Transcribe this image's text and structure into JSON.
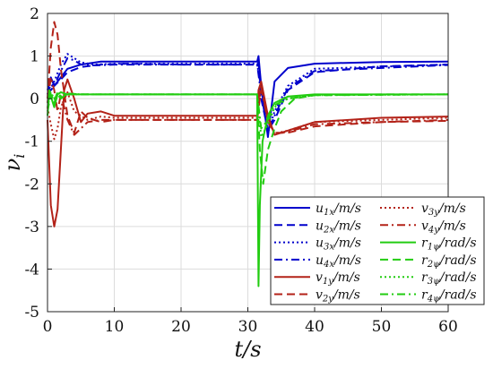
{
  "chart_data": {
    "type": "line",
    "title": "",
    "xlabel": "t/s",
    "ylabel": "ν_i",
    "xlim": [
      0,
      60
    ],
    "ylim": [
      -5,
      2
    ],
    "xticks": [
      0,
      10,
      20,
      30,
      40,
      50,
      60
    ],
    "yticks": [
      -5,
      -4,
      -3,
      -2,
      -1,
      0,
      1,
      2
    ],
    "grid": true,
    "legend_position": "bottom-right",
    "series": [
      {
        "name": "u_{1x}/m/s",
        "color": "#0000cc",
        "dash": "solid",
        "x": [
          0,
          0.5,
          1,
          2,
          3,
          5,
          8,
          12,
          20,
          31.4,
          31.6,
          32,
          33,
          34,
          36,
          40,
          50,
          60
        ],
        "y": [
          0.2,
          0.5,
          0.3,
          0.5,
          0.7,
          0.8,
          0.87,
          0.87,
          0.87,
          0.87,
          1.0,
          0.3,
          -0.9,
          0.4,
          0.72,
          0.82,
          0.86,
          0.87
        ]
      },
      {
        "name": "u_{2x}/m/s",
        "color": "#0000cc",
        "dash": "dash",
        "x": [
          0,
          0.5,
          1,
          2,
          3,
          5,
          8,
          12,
          20,
          31.4,
          31.6,
          32,
          33,
          34,
          36,
          40,
          50,
          60
        ],
        "y": [
          0.1,
          0.35,
          0.3,
          0.45,
          0.62,
          0.74,
          0.8,
          0.82,
          0.8,
          0.8,
          0.85,
          0.0,
          -0.75,
          -0.5,
          0.2,
          0.62,
          0.76,
          0.8
        ]
      },
      {
        "name": "u_{3x}/m/s",
        "color": "#0000cc",
        "dash": "dot",
        "x": [
          0,
          1,
          2,
          3,
          4,
          5,
          7,
          10,
          15,
          20,
          31.4,
          32,
          33,
          34,
          36,
          40,
          60
        ],
        "y": [
          0.1,
          0.4,
          0.8,
          1.05,
          0.95,
          0.85,
          0.8,
          0.82,
          0.82,
          0.82,
          0.82,
          0.2,
          -0.8,
          -0.3,
          0.3,
          0.7,
          0.8
        ]
      },
      {
        "name": "u_{4x}/m/s",
        "color": "#0000cc",
        "dash": "dashdot",
        "x": [
          0,
          1,
          2,
          3,
          4,
          5,
          7,
          10,
          15,
          20,
          31.4,
          32,
          33,
          34,
          36,
          40,
          60
        ],
        "y": [
          0.1,
          0.3,
          0.65,
          0.95,
          0.9,
          0.8,
          0.78,
          0.8,
          0.8,
          0.8,
          0.8,
          0.1,
          -0.78,
          -0.4,
          0.25,
          0.65,
          0.79
        ]
      },
      {
        "name": "v_{1y}/m/s",
        "color": "#b32218",
        "dash": "solid",
        "x": [
          0,
          0.5,
          1,
          1.5,
          2,
          2.5,
          3,
          4,
          5,
          6,
          8,
          10,
          15,
          20,
          31.4,
          31.6,
          32,
          33,
          34,
          36,
          40,
          50,
          60
        ],
        "y": [
          -0.5,
          -2.5,
          -3.0,
          -2.6,
          -1.2,
          0.2,
          0.45,
          0.0,
          -0.55,
          -0.35,
          -0.3,
          -0.4,
          -0.4,
          -0.4,
          -0.4,
          0.2,
          0.4,
          -0.4,
          -0.85,
          -0.75,
          -0.55,
          -0.45,
          -0.42
        ]
      },
      {
        "name": "v_{2y}/m/s",
        "color": "#b32218",
        "dash": "dash",
        "x": [
          0,
          0.5,
          1,
          1.5,
          2,
          3,
          4,
          5,
          6,
          8,
          10,
          15,
          20,
          31.4,
          31.6,
          32,
          33,
          34,
          36,
          40,
          50,
          60
        ],
        "y": [
          0.0,
          1.2,
          1.8,
          1.5,
          0.7,
          -0.4,
          -0.8,
          -0.3,
          -0.45,
          -0.55,
          -0.5,
          -0.5,
          -0.5,
          -0.5,
          0.0,
          0.3,
          -0.5,
          -0.8,
          -0.8,
          -0.65,
          -0.55,
          -0.52
        ]
      },
      {
        "name": "v_{3y}/m/s",
        "color": "#b32218",
        "dash": "dot",
        "x": [
          0,
          0.5,
          1,
          1.5,
          2,
          3,
          4,
          6,
          8,
          10,
          20,
          31.4,
          32,
          33,
          34,
          36,
          40,
          60
        ],
        "y": [
          -0.2,
          -0.6,
          -0.95,
          -0.7,
          -0.2,
          0.15,
          -0.3,
          -0.5,
          -0.42,
          -0.45,
          -0.45,
          -0.45,
          0.3,
          -0.5,
          -0.82,
          -0.75,
          -0.55,
          -0.45
        ]
      },
      {
        "name": "v_{4y}/m/s",
        "color": "#b32218",
        "dash": "dashdot",
        "x": [
          0,
          0.5,
          1,
          1.5,
          2,
          3,
          4,
          6,
          8,
          10,
          20,
          31.4,
          32,
          33,
          34,
          36,
          40,
          60
        ],
        "y": [
          -0.1,
          0.5,
          0.2,
          -0.3,
          0.1,
          -0.5,
          -0.85,
          -0.55,
          -0.5,
          -0.5,
          -0.5,
          -0.5,
          0.25,
          -0.55,
          -0.82,
          -0.78,
          -0.6,
          -0.5
        ]
      },
      {
        "name": "r_{1ψ}/rad/s",
        "color": "#22cc11",
        "dash": "solid",
        "x": [
          0,
          0.3,
          0.6,
          1,
          1.5,
          2,
          3,
          5,
          8,
          12,
          20,
          31.4,
          31.6,
          31.8,
          32.2,
          33,
          34,
          36,
          40,
          50,
          60
        ],
        "y": [
          -0.4,
          0.2,
          0.0,
          -0.2,
          0.1,
          0.15,
          0.1,
          0.1,
          0.1,
          0.1,
          0.1,
          0.1,
          -4.4,
          -2.5,
          -1.0,
          -0.4,
          -0.1,
          0.05,
          0.1,
          0.1,
          0.1
        ]
      },
      {
        "name": "r_{2ψ}/rad/s",
        "color": "#22cc11",
        "dash": "dash",
        "x": [
          0,
          0.5,
          1,
          1.5,
          2,
          3,
          5,
          8,
          12,
          20,
          31.4,
          31.8,
          32.3,
          33,
          34,
          35,
          37,
          40,
          50,
          60
        ],
        "y": [
          -0.3,
          0.1,
          -0.1,
          0.1,
          0.0,
          0.12,
          0.1,
          0.1,
          0.1,
          0.1,
          0.1,
          -1.2,
          -2.0,
          -1.2,
          -0.7,
          -0.3,
          0.0,
          0.08,
          0.1,
          0.1
        ]
      },
      {
        "name": "r_{3ψ}/rad/s",
        "color": "#22cc11",
        "dash": "dot",
        "x": [
          0,
          0.5,
          1,
          1.5,
          2,
          3,
          5,
          8,
          12,
          20,
          31.4,
          32,
          33,
          34,
          36,
          40,
          60
        ],
        "y": [
          -0.2,
          0.15,
          0.0,
          0.1,
          0.05,
          0.12,
          0.1,
          0.1,
          0.1,
          0.1,
          0.1,
          -0.9,
          -0.6,
          -0.2,
          0.0,
          0.08,
          0.1
        ]
      },
      {
        "name": "r_{4ψ}/rad/s",
        "color": "#22cc11",
        "dash": "dashdot",
        "x": [
          0,
          0.5,
          1,
          1.5,
          2,
          3,
          5,
          8,
          12,
          20,
          31.4,
          32,
          33,
          34,
          36,
          40,
          60
        ],
        "y": [
          -0.1,
          0.1,
          -0.05,
          0.15,
          0.05,
          0.1,
          0.1,
          0.1,
          0.1,
          0.1,
          0.1,
          -0.7,
          -0.5,
          -0.15,
          0.0,
          0.08,
          0.1
        ]
      }
    ]
  }
}
